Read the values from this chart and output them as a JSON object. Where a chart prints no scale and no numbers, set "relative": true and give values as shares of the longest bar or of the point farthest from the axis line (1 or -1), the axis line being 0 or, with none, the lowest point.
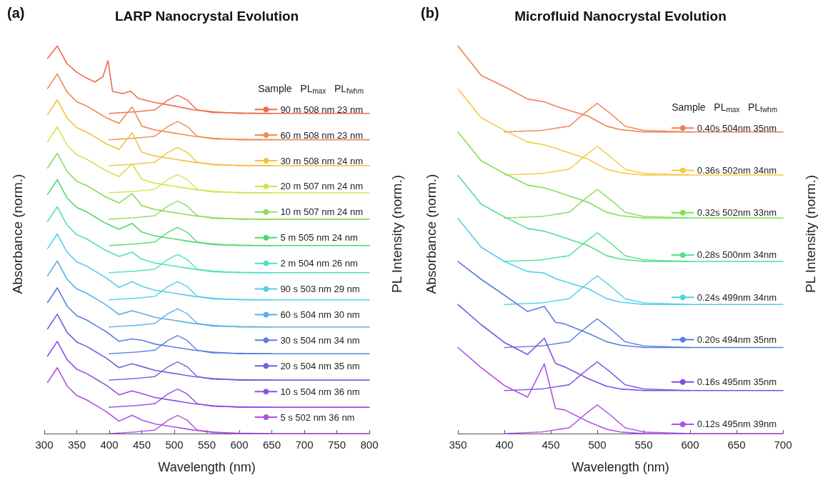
{
  "chart_data": [
    {
      "type": "line",
      "title": "LARP Nanocrystal Evolution",
      "xlabel": "Wavelength (nm)",
      "ylabel": "Absorbance (norm.)",
      "y2label": "PL Intensity (norm.)",
      "legend_title": "Sample   PL$_{max}$   PL$_{fwhm}$",
      "annotations": [
        "(a)"
      ],
      "relative": true,
      "legend": "right",
      "marker": "none",
      "xlim": [
        300,
        800
      ],
      "xticks": [
        300,
        350,
        400,
        450,
        500,
        550,
        600,
        650,
        700,
        750,
        800
      ],
      "x": [
        305,
        320,
        335,
        350,
        365,
        380,
        395,
        415,
        435,
        450,
        470,
        500,
        530,
        560,
        600,
        800
      ],
      "series": [
        {
          "name": "90 m 508 nm 23 nm",
          "color": "#f06a4a",
          "x": [
            305,
            320,
            335,
            350,
            365,
            378,
            390,
            398,
            405,
            420,
            433,
            445,
            470,
            500,
            530,
            560,
            600,
            800
          ],
          "values": [
            0.968,
            1.0,
            0.954,
            0.932,
            0.917,
            0.907,
            0.92,
            0.962,
            0.883,
            0.877,
            0.883,
            0.864,
            0.854,
            0.845,
            0.835,
            0.83,
            0.826,
            0.826
          ]
        },
        {
          "color": "#f06a4a",
          "line_style": "dotted",
          "x": [
            400,
            440,
            470,
            490,
            505,
            520,
            535,
            560,
            650
          ],
          "values": [
            0.826,
            0.83,
            0.835,
            0.86,
            0.873,
            0.86,
            0.835,
            0.828,
            0.826
          ]
        },
        {
          "name": "60 m 508 nm 23 nm",
          "color": "#f08a50",
          "values": [
            0.89,
            0.928,
            0.881,
            0.856,
            0.845,
            0.83,
            0.815,
            0.8,
            0.843,
            0.793,
            0.783,
            0.775,
            0.767,
            0.762,
            0.758,
            0.758
          ]
        },
        {
          "color": "#f08a50",
          "line_style": "dotted",
          "x": [
            400,
            440,
            470,
            490,
            505,
            520,
            535,
            560,
            650
          ],
          "values": [
            0.758,
            0.762,
            0.767,
            0.792,
            0.805,
            0.792,
            0.767,
            0.76,
            0.758
          ]
        },
        {
          "name": "30 m 508 nm 24 nm",
          "color": "#f5c040",
          "values": [
            0.823,
            0.861,
            0.814,
            0.789,
            0.778,
            0.763,
            0.748,
            0.733,
            0.776,
            0.726,
            0.716,
            0.708,
            0.7,
            0.695,
            0.691,
            0.691
          ]
        },
        {
          "color": "#f5c040",
          "line_style": "dotted",
          "x": [
            400,
            440,
            470,
            490,
            505,
            520,
            535,
            560,
            650
          ],
          "values": [
            0.691,
            0.695,
            0.7,
            0.725,
            0.738,
            0.725,
            0.7,
            0.693,
            0.691
          ]
        },
        {
          "name": "20 m 507 nm 24 nm",
          "color": "#d8e050",
          "values": [
            0.753,
            0.791,
            0.744,
            0.719,
            0.708,
            0.693,
            0.678,
            0.663,
            0.696,
            0.656,
            0.646,
            0.638,
            0.63,
            0.625,
            0.621,
            0.621
          ]
        },
        {
          "color": "#d8e050",
          "line_style": "dotted",
          "x": [
            400,
            440,
            470,
            490,
            505,
            520,
            535,
            560,
            650
          ],
          "values": [
            0.621,
            0.625,
            0.63,
            0.655,
            0.668,
            0.655,
            0.63,
            0.623,
            0.621
          ]
        },
        {
          "name": "10 m 507 nm 24 nm",
          "color": "#90d860",
          "values": [
            0.685,
            0.723,
            0.676,
            0.651,
            0.64,
            0.625,
            0.61,
            0.595,
            0.619,
            0.588,
            0.578,
            0.57,
            0.562,
            0.557,
            0.553,
            0.553
          ]
        },
        {
          "color": "#90d860",
          "line_style": "dotted",
          "x": [
            400,
            440,
            470,
            490,
            505,
            520,
            535,
            560,
            650
          ],
          "values": [
            0.553,
            0.557,
            0.562,
            0.587,
            0.6,
            0.587,
            0.562,
            0.555,
            0.553
          ]
        },
        {
          "name": "5 m 505 nm 24 nm",
          "color": "#50d870",
          "values": [
            0.617,
            0.655,
            0.608,
            0.583,
            0.572,
            0.557,
            0.542,
            0.527,
            0.542,
            0.52,
            0.51,
            0.502,
            0.494,
            0.489,
            0.485,
            0.485
          ]
        },
        {
          "color": "#50d870",
          "line_style": "dotted",
          "x": [
            400,
            440,
            470,
            490,
            505,
            520,
            535,
            560,
            650
          ],
          "values": [
            0.485,
            0.489,
            0.494,
            0.519,
            0.532,
            0.519,
            0.494,
            0.487,
            0.485
          ]
        },
        {
          "name": "2 m 504 nm 26 nm",
          "color": "#50e0c0",
          "values": [
            0.547,
            0.585,
            0.538,
            0.513,
            0.502,
            0.487,
            0.472,
            0.457,
            0.468,
            0.45,
            0.44,
            0.432,
            0.424,
            0.419,
            0.415,
            0.415
          ]
        },
        {
          "color": "#50e0c0",
          "line_style": "dotted",
          "x": [
            400,
            440,
            470,
            490,
            505,
            520,
            535,
            560,
            650
          ],
          "values": [
            0.415,
            0.419,
            0.424,
            0.449,
            0.462,
            0.449,
            0.424,
            0.417,
            0.415
          ]
        },
        {
          "name": "90 s 503 nm 29 nm",
          "color": "#50d0e8",
          "values": [
            0.477,
            0.515,
            0.468,
            0.443,
            0.432,
            0.417,
            0.402,
            0.377,
            0.392,
            0.38,
            0.37,
            0.362,
            0.354,
            0.349,
            0.345,
            0.345
          ]
        },
        {
          "color": "#50d0e8",
          "line_style": "dotted",
          "x": [
            400,
            440,
            470,
            490,
            505,
            520,
            535,
            560,
            650
          ],
          "values": [
            0.345,
            0.349,
            0.354,
            0.379,
            0.392,
            0.379,
            0.354,
            0.347,
            0.345
          ]
        },
        {
          "name": "60 s 504 nm 30 nm",
          "color": "#5ab0e8",
          "values": [
            0.407,
            0.445,
            0.398,
            0.373,
            0.362,
            0.347,
            0.332,
            0.307,
            0.317,
            0.31,
            0.3,
            0.292,
            0.284,
            0.279,
            0.275,
            0.275
          ]
        },
        {
          "color": "#5ab0e8",
          "line_style": "dotted",
          "x": [
            400,
            440,
            470,
            490,
            505,
            520,
            535,
            560,
            650
          ],
          "values": [
            0.275,
            0.279,
            0.284,
            0.309,
            0.322,
            0.309,
            0.284,
            0.277,
            0.275
          ]
        },
        {
          "name": "30 s 504 nm 34 nm",
          "color": "#5a80e0",
          "values": [
            0.338,
            0.376,
            0.329,
            0.304,
            0.293,
            0.278,
            0.263,
            0.238,
            0.244,
            0.241,
            0.231,
            0.223,
            0.215,
            0.21,
            0.206,
            0.206
          ]
        },
        {
          "color": "#5a80e0",
          "line_style": "dotted",
          "x": [
            400,
            440,
            470,
            490,
            505,
            520,
            535,
            560,
            650
          ],
          "values": [
            0.206,
            0.21,
            0.215,
            0.24,
            0.253,
            0.24,
            0.215,
            0.208,
            0.206
          ]
        },
        {
          "name": "20 s 504 nm 35 nm",
          "color": "#7060e0",
          "values": [
            0.27,
            0.308,
            0.261,
            0.236,
            0.225,
            0.21,
            0.195,
            0.17,
            0.18,
            0.173,
            0.163,
            0.155,
            0.147,
            0.142,
            0.138,
            0.138
          ]
        },
        {
          "color": "#7060e0",
          "line_style": "dotted",
          "x": [
            400,
            440,
            470,
            490,
            505,
            520,
            535,
            560,
            650
          ],
          "values": [
            0.138,
            0.142,
            0.147,
            0.172,
            0.185,
            0.172,
            0.147,
            0.14,
            0.138
          ]
        },
        {
          "name": "10 s 504 nm 36 nm",
          "color": "#9050e0",
          "values": [
            0.2,
            0.238,
            0.191,
            0.166,
            0.155,
            0.14,
            0.125,
            0.1,
            0.11,
            0.103,
            0.093,
            0.085,
            0.077,
            0.072,
            0.068,
            0.068
          ]
        },
        {
          "color": "#9050e0",
          "line_style": "dotted",
          "x": [
            400,
            440,
            470,
            490,
            505,
            520,
            535,
            560,
            650
          ],
          "values": [
            0.068,
            0.072,
            0.077,
            0.102,
            0.115,
            0.102,
            0.077,
            0.07,
            0.068
          ]
        },
        {
          "name": "5 s 502 nm 36 nm",
          "color": "#b050e0",
          "values": [
            0.132,
            0.17,
            0.123,
            0.098,
            0.087,
            0.072,
            0.057,
            0.032,
            0.047,
            0.035,
            0.025,
            0.017,
            0.009,
            0.004,
            0,
            0
          ]
        },
        {
          "color": "#b050e0",
          "line_style": "dotted",
          "x": [
            400,
            440,
            470,
            490,
            505,
            520,
            535,
            560,
            650
          ],
          "values": [
            0,
            0.004,
            0.009,
            0.034,
            0.047,
            0.034,
            0.009,
            0.002,
            0
          ]
        }
      ]
    },
    {
      "type": "line",
      "title": "Microfluid Nanocrystal Evolution",
      "xlabel": "Wavelength (nm)",
      "ylabel": "Absorbance (norm.)",
      "y2label": "PL Intensity (norm.)",
      "legend_title": "Sample   PL$_{max}$   PL$_{fwhm}$",
      "annotations": [
        "(b)"
      ],
      "relative": true,
      "legend": "right",
      "marker": "none",
      "xlim": [
        350,
        700
      ],
      "xticks": [
        350,
        400,
        450,
        500,
        550,
        600,
        650,
        700
      ],
      "x": [
        350,
        375,
        400,
        425,
        443,
        455,
        465,
        490,
        510,
        525,
        550,
        700
      ],
      "series": [
        {
          "name": "0.40s 504nm 35nm",
          "color": "#f08050",
          "values": [
            1.0,
            0.924,
            0.895,
            0.863,
            0.856,
            0.845,
            0.837,
            0.819,
            0.793,
            0.784,
            0.778,
            0.778
          ]
        },
        {
          "color": "#f08050",
          "line_style": "dotted",
          "x": [
            400,
            440,
            470,
            485,
            500,
            515,
            530,
            550,
            600
          ],
          "values": [
            0.778,
            0.782,
            0.793,
            0.824,
            0.852,
            0.824,
            0.793,
            0.782,
            0.778
          ]
        },
        {
          "name": "0.36s 502nm 34nm",
          "color": "#f5c842",
          "values": [
            0.889,
            0.815,
            0.782,
            0.752,
            0.745,
            0.736,
            0.728,
            0.708,
            0.682,
            0.673,
            0.667,
            0.667
          ]
        },
        {
          "color": "#f5c842",
          "line_style": "dotted",
          "x": [
            400,
            440,
            470,
            485,
            500,
            515,
            530,
            550,
            600
          ],
          "values": [
            0.667,
            0.671,
            0.682,
            0.713,
            0.741,
            0.713,
            0.682,
            0.671,
            0.667
          ]
        },
        {
          "name": "0.32s 502nm 33nm",
          "color": "#80e050",
          "values": [
            0.778,
            0.704,
            0.671,
            0.641,
            0.634,
            0.625,
            0.617,
            0.597,
            0.571,
            0.562,
            0.556,
            0.556
          ]
        },
        {
          "color": "#80e050",
          "line_style": "dotted",
          "x": [
            400,
            440,
            470,
            485,
            500,
            515,
            530,
            550,
            600
          ],
          "values": [
            0.556,
            0.56,
            0.571,
            0.602,
            0.63,
            0.602,
            0.571,
            0.56,
            0.556
          ]
        },
        {
          "name": "0.28s 500nm 34nm",
          "color": "#50e090",
          "values": [
            0.666,
            0.592,
            0.559,
            0.529,
            0.522,
            0.513,
            0.505,
            0.485,
            0.459,
            0.45,
            0.444,
            0.444
          ]
        },
        {
          "color": "#50e090",
          "line_style": "dotted",
          "x": [
            400,
            440,
            470,
            485,
            500,
            515,
            530,
            550,
            600
          ],
          "values": [
            0.444,
            0.448,
            0.459,
            0.49,
            0.518,
            0.49,
            0.459,
            0.448,
            0.444
          ]
        },
        {
          "name": "0.24s 499nm 34nm",
          "color": "#50d0e8",
          "values": [
            0.555,
            0.481,
            0.444,
            0.418,
            0.414,
            0.4,
            0.392,
            0.374,
            0.348,
            0.339,
            0.333,
            0.333
          ]
        },
        {
          "color": "#50d0e8",
          "line_style": "dotted",
          "x": [
            400,
            440,
            470,
            485,
            500,
            515,
            530,
            550,
            600
          ],
          "values": [
            0.333,
            0.337,
            0.348,
            0.379,
            0.407,
            0.379,
            0.348,
            0.337,
            0.333
          ]
        },
        {
          "name": "0.20s 494nm 35nm",
          "color": "#5a7ee0",
          "values": [
            0.444,
            0.398,
            0.357,
            0.315,
            0.328,
            0.287,
            0.283,
            0.259,
            0.237,
            0.228,
            0.222,
            0.222
          ]
        },
        {
          "color": "#5a7ee0",
          "line_style": "dotted",
          "x": [
            400,
            440,
            470,
            485,
            500,
            515,
            530,
            550,
            600
          ],
          "values": [
            0.222,
            0.226,
            0.237,
            0.268,
            0.296,
            0.268,
            0.237,
            0.226,
            0.222
          ]
        },
        {
          "name": "0.16s 495nm 35nm",
          "color": "#7a50e0",
          "values": [
            0.333,
            0.281,
            0.235,
            0.204,
            0.246,
            0.181,
            0.172,
            0.142,
            0.122,
            0.115,
            0.111,
            0.111
          ]
        },
        {
          "color": "#7a50e0",
          "line_style": "dotted",
          "x": [
            400,
            440,
            470,
            485,
            500,
            515,
            530,
            550,
            600
          ],
          "values": [
            0.111,
            0.115,
            0.126,
            0.157,
            0.185,
            0.157,
            0.126,
            0.115,
            0.111
          ]
        },
        {
          "name": "0.12s 495nm 39nm",
          "color": "#b050e8",
          "values": [
            0.222,
            0.17,
            0.124,
            0.094,
            0.18,
            0.065,
            0.061,
            0.031,
            0.011,
            0.004,
            0,
            0
          ]
        },
        {
          "color": "#b050e8",
          "line_style": "dotted",
          "x": [
            400,
            440,
            470,
            485,
            500,
            515,
            530,
            550,
            600
          ],
          "values": [
            0,
            0.004,
            0.015,
            0.046,
            0.074,
            0.046,
            0.015,
            0.004,
            0
          ]
        }
      ]
    }
  ]
}
